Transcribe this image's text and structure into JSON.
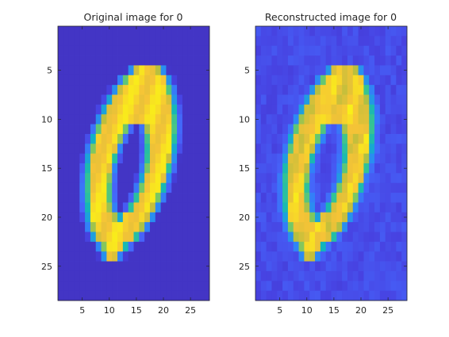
{
  "figure": {
    "colormap": "parula",
    "background": "#ffffff",
    "image_size": [
      28,
      28
    ]
  },
  "chart_data": [
    {
      "type": "heatmap",
      "title": "Original image for 0",
      "xlabel": "",
      "ylabel": "",
      "xlim": [
        0.5,
        28.5
      ],
      "ylim": [
        28.5,
        0.5
      ],
      "xticks": [
        5,
        10,
        15,
        20,
        25
      ],
      "yticks": [
        5,
        10,
        15,
        20,
        25
      ],
      "xtick_labels": [
        "5",
        "10",
        "15",
        "20",
        "25"
      ],
      "ytick_labels": [
        "5",
        "10",
        "15",
        "20",
        "25"
      ],
      "background_value": 0.05,
      "ink_value": 0.93,
      "noise": 0.0,
      "stroke": {
        "center_top": [
          17.0,
          5.0
        ],
        "center_bottom": [
          10.5,
          24.0
        ],
        "outer_half_width_mid": 8.0,
        "inner_half_width_mid": 2.6,
        "inner_top_row": 10.0,
        "inner_bottom_row": 20.0
      }
    },
    {
      "type": "heatmap",
      "title": "Reconstructed image for 0",
      "xlabel": "",
      "ylabel": "",
      "xlim": [
        0.5,
        28.5
      ],
      "ylim": [
        28.5,
        0.5
      ],
      "xticks": [
        5,
        10,
        15,
        20,
        25
      ],
      "yticks": [
        5,
        10,
        15,
        20,
        25
      ],
      "xtick_labels": [
        "5",
        "10",
        "15",
        "20",
        "25"
      ],
      "ytick_labels": [
        "5",
        "10",
        "15",
        "20",
        "25"
      ],
      "background_value": 0.13,
      "ink_value": 0.9,
      "noise": 0.08,
      "stroke": {
        "center_top": [
          17.0,
          5.0
        ],
        "center_bottom": [
          10.5,
          24.0
        ],
        "outer_half_width_mid": 8.0,
        "inner_half_width_mid": 2.6,
        "inner_top_row": 10.0,
        "inner_bottom_row": 20.0
      }
    }
  ]
}
